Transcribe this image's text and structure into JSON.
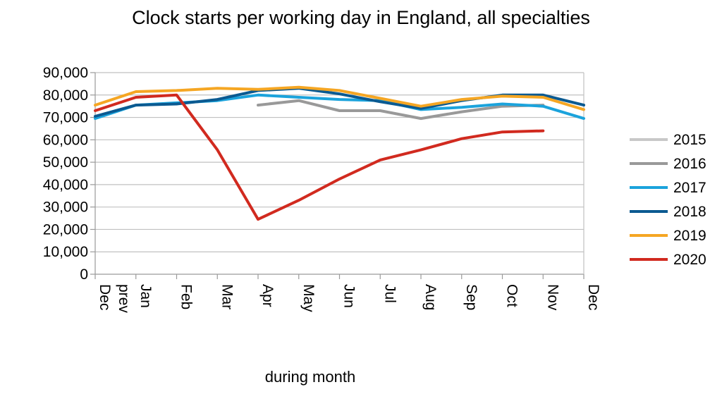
{
  "chart_data": {
    "type": "line",
    "title": "Clock starts per working day in England, all specialties",
    "xlabel": "during month",
    "ylabel": "",
    "ylim": [
      0,
      90000
    ],
    "grid": true,
    "legend_position": "right",
    "categories": [
      "Dec prev",
      "Jan",
      "Feb",
      "Mar",
      "Apr",
      "May",
      "Jun",
      "Jul",
      "Aug",
      "Sep",
      "Oct",
      "Nov",
      "Dec"
    ],
    "y_ticks": [
      "0",
      "10,000",
      "20,000",
      "30,000",
      "40,000",
      "50,000",
      "60,000",
      "70,000",
      "80,000",
      "90,000"
    ],
    "series": [
      {
        "name": "2015",
        "color": "#c8c8c8",
        "values": [
          null,
          null,
          null,
          null,
          null,
          null,
          null,
          null,
          null,
          null,
          null,
          null,
          null
        ]
      },
      {
        "name": "2016",
        "color": "#999999",
        "values": [
          null,
          null,
          null,
          null,
          75500,
          77500,
          73000,
          73000,
          69500,
          72500,
          75000,
          75500,
          null
        ]
      },
      {
        "name": "2017",
        "color": "#1ba3dc",
        "values": [
          69500,
          75500,
          76500,
          77500,
          80000,
          79000,
          78000,
          77500,
          73500,
          74500,
          76000,
          75000,
          69500
        ]
      },
      {
        "name": "2018",
        "color": "#0b5a91",
        "values": [
          70500,
          75500,
          76000,
          78000,
          82000,
          83000,
          80500,
          77000,
          74000,
          77500,
          80000,
          80000,
          75500
        ]
      },
      {
        "name": "2019",
        "color": "#f5a623",
        "values": [
          75500,
          81500,
          82000,
          83000,
          82500,
          83500,
          82000,
          78500,
          75000,
          78000,
          79500,
          79000,
          73500
        ]
      },
      {
        "name": "2020",
        "color": "#d12a1f",
        "values": [
          73000,
          79000,
          80000,
          55500,
          24500,
          33000,
          42500,
          51000,
          55500,
          60500,
          63500,
          64000,
          null
        ]
      }
    ]
  }
}
